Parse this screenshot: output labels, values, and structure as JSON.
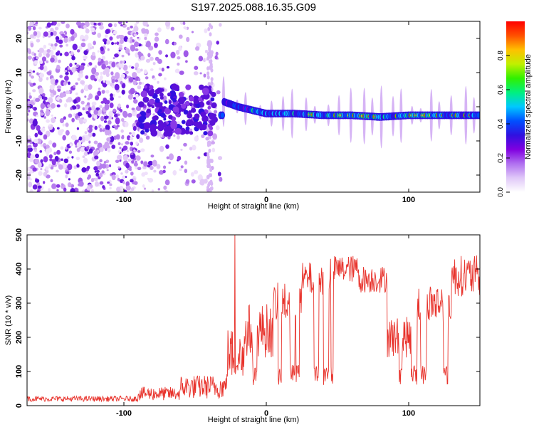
{
  "figure": {
    "title": "S197.2025.088.16.35.G09"
  },
  "chart_data": [
    {
      "type": "heatmap",
      "title": "S197.2025.088.16.35.G09",
      "xlabel": "Height of straight line (km)",
      "ylabel": "Frequency (Hz)",
      "xlim": [
        -168,
        150
      ],
      "ylim": [
        -25,
        25
      ],
      "xticks": [
        -100,
        0,
        100
      ],
      "yticks": [
        -20,
        -10,
        0,
        10,
        20
      ],
      "colorbar": {
        "label": "Normalized spectral amplitude",
        "range": [
          0,
          1
        ],
        "ticks": [
          "0.0",
          "0.2",
          "0.4",
          "0.6",
          "0.8"
        ],
        "colormap": [
          "#ffffff",
          "#e0c8f8",
          "#b070f0",
          "#8000e0",
          "#3010e0",
          "#0050ff",
          "#00c8ff",
          "#00f080",
          "#30f000",
          "#c0f000",
          "#ffc000",
          "#ff5000",
          "#ff0000"
        ]
      },
      "ridge": {
        "description_points": [
          [
            -30,
            1.5
          ],
          [
            -20,
            0
          ],
          [
            -10,
            -1
          ],
          [
            0,
            -2
          ],
          [
            20,
            -2
          ],
          [
            40,
            -2.5
          ],
          [
            60,
            -2.5
          ],
          [
            80,
            -3
          ],
          [
            100,
            -2.5
          ],
          [
            120,
            -2.5
          ],
          [
            150,
            -2.5
          ]
        ]
      },
      "noise_region_x": [
        -168,
        -40
      ],
      "signal_onset_x": -35
    },
    {
      "type": "line",
      "xlabel": "Height of straight line (km)",
      "ylabel": "SNR (10 * v/v)",
      "xlim": [
        -168,
        150
      ],
      "ylim": [
        0,
        500
      ],
      "xticks": [
        -100,
        0,
        100
      ],
      "yticks": [
        0,
        100,
        200,
        300,
        400,
        500
      ],
      "color": "#e8332c",
      "segments": [
        {
          "x": [
            -168,
            -90
          ],
          "level": 20,
          "noise": 8
        },
        {
          "x": [
            -90,
            -60
          ],
          "level": 35,
          "noise": 20
        },
        {
          "x": [
            -60,
            -28
          ],
          "level": 55,
          "noise": 35
        },
        {
          "x": [
            -28,
            -15
          ],
          "level": 150,
          "noise": 80
        },
        {
          "x": [
            -15,
            5
          ],
          "level": 220,
          "noise": 80
        },
        {
          "x": [
            5,
            25
          ],
          "level": 300,
          "noise": 60
        },
        {
          "x": [
            25,
            45
          ],
          "level": 370,
          "noise": 50
        },
        {
          "x": [
            45,
            65
          ],
          "level": 400,
          "noise": 40
        },
        {
          "x": [
            65,
            85
          ],
          "level": 370,
          "noise": 40
        },
        {
          "x": [
            85,
            105
          ],
          "level": 200,
          "noise": 60
        },
        {
          "x": [
            105,
            130
          ],
          "level": 300,
          "noise": 60
        },
        {
          "x": [
            130,
            150
          ],
          "level": 380,
          "noise": 60
        }
      ],
      "spike": {
        "x": -22,
        "y": 500
      }
    }
  ]
}
